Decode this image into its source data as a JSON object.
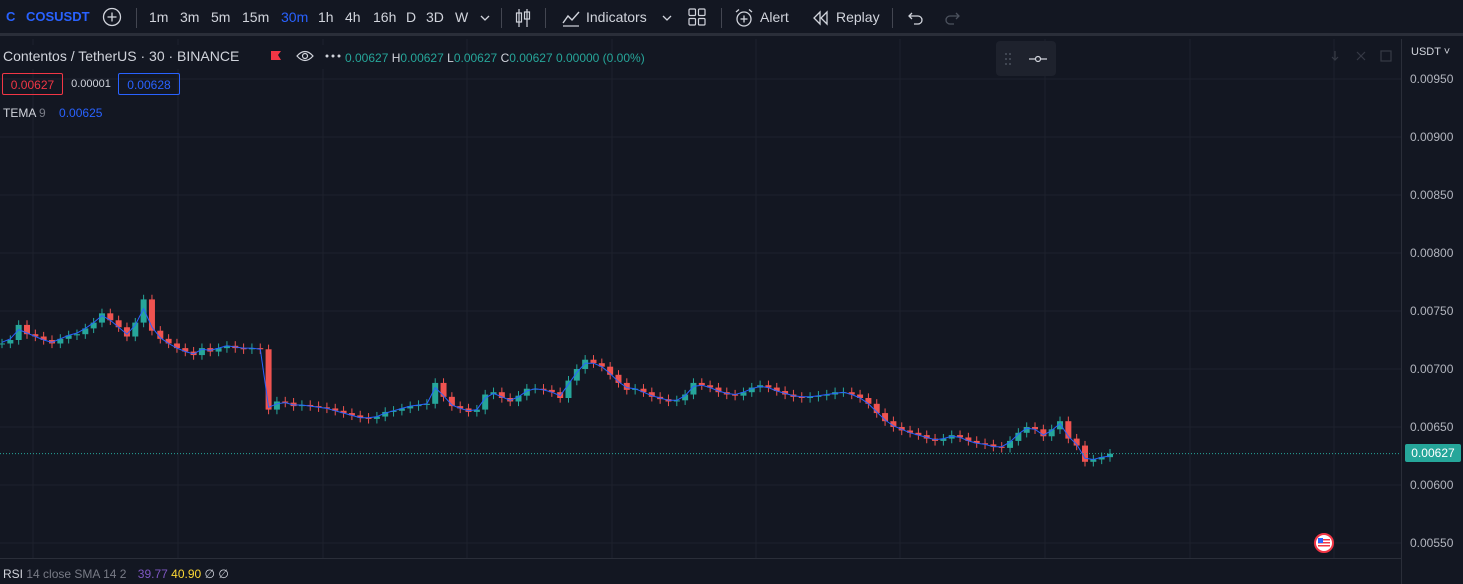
{
  "toolbar": {
    "symbol_logo": "C",
    "symbol": "COSUSDT",
    "timeframes": [
      "1m",
      "3m",
      "5m",
      "15m",
      "30m",
      "1h",
      "4h",
      "16h",
      "D",
      "3D",
      "W"
    ],
    "active_timeframe": "30m",
    "indicators_label": "Indicators",
    "alert_label": "Alert",
    "replay_label": "Replay"
  },
  "legend": {
    "title": "Contentos / TetherUS · 30 · BINANCE",
    "ohlc": {
      "o_value": "0.00627",
      "h_label": "H",
      "h_value": "0.00627",
      "l_label": "L",
      "l_value": "0.00627",
      "c_label": "C",
      "c_value": "0.00627",
      "change": "0.00000 (0.00%)"
    },
    "sell_price": "0.00627",
    "spread": "0.00001",
    "buy_price": "0.00628",
    "tema_label": "TEMA",
    "tema_period": "9",
    "tema_value": "0.00625"
  },
  "rsi": {
    "label": "RSI",
    "params": "14 close SMA 14 2",
    "value1": "39.77",
    "value2": "40.90",
    "value3": "∅",
    "value4": "∅"
  },
  "price_scale": {
    "currency": "USDT",
    "labels": [
      "0.00950",
      "0.00900",
      "0.00850",
      "0.00800",
      "0.00750",
      "0.00700",
      "0.00650",
      "0.00600",
      "0.00550"
    ],
    "last_price": "0.00627"
  },
  "colors": {
    "up": "#26a69a",
    "down": "#ef5350",
    "accent": "#2962ff",
    "background": "#131722",
    "tema": "#2962ff"
  },
  "chart_data": {
    "type": "candlestick",
    "ylim": [
      0.0052,
      0.0097
    ],
    "close_series": [
      0.00722,
      0.00725,
      0.00738,
      0.0073,
      0.00728,
      0.00725,
      0.00722,
      0.00726,
      0.00729,
      0.0073,
      0.00735,
      0.0074,
      0.00748,
      0.00742,
      0.00736,
      0.00728,
      0.0074,
      0.0076,
      0.00733,
      0.00726,
      0.00722,
      0.00718,
      0.00715,
      0.00712,
      0.00718,
      0.00715,
      0.00718,
      0.0072,
      0.00718,
      0.00717,
      0.00718,
      0.00717,
      0.00665,
      0.00672,
      0.00671,
      0.00668,
      0.00669,
      0.00668,
      0.00667,
      0.00666,
      0.00664,
      0.00662,
      0.0066,
      0.00658,
      0.00657,
      0.00659,
      0.00663,
      0.00664,
      0.00666,
      0.00668,
      0.00669,
      0.0067,
      0.00688,
      0.00676,
      0.00668,
      0.00666,
      0.00663,
      0.00665,
      0.00678,
      0.0068,
      0.00675,
      0.00672,
      0.00677,
      0.00683,
      0.00683,
      0.00682,
      0.0068,
      0.00675,
      0.0069,
      0.007,
      0.00708,
      0.00705,
      0.00702,
      0.00695,
      0.00688,
      0.00682,
      0.00683,
      0.0068,
      0.00676,
      0.00674,
      0.00672,
      0.00673,
      0.00678,
      0.00688,
      0.00686,
      0.00684,
      0.0068,
      0.00678,
      0.00677,
      0.0068,
      0.00684,
      0.00686,
      0.00684,
      0.00681,
      0.00678,
      0.00676,
      0.00675,
      0.00676,
      0.00677,
      0.00678,
      0.0068,
      0.0068,
      0.00678,
      0.00675,
      0.0067,
      0.00662,
      0.00655,
      0.0065,
      0.00647,
      0.00645,
      0.00643,
      0.0064,
      0.00638,
      0.0064,
      0.00643,
      0.00641,
      0.00638,
      0.00636,
      0.00635,
      0.00633,
      0.00632,
      0.00638,
      0.00645,
      0.0065,
      0.00648,
      0.00642,
      0.00648,
      0.00655,
      0.0064,
      0.00634,
      0.0062,
      0.00622,
      0.00624,
      0.00627
    ],
    "tema_series": [
      0.00723,
      0.00726,
      0.00734,
      0.00731,
      0.00728,
      0.00725,
      0.00723,
      0.00726,
      0.00729,
      0.00731,
      0.00735,
      0.0074,
      0.00746,
      0.00742,
      0.00736,
      0.0073,
      0.00738,
      0.00752,
      0.00736,
      0.00727,
      0.00722,
      0.00718,
      0.00715,
      0.00713,
      0.00717,
      0.00716,
      0.00718,
      0.0072,
      0.00719,
      0.00718,
      0.00718,
      0.00717,
      0.00667,
      0.0067,
      0.00671,
      0.00669,
      0.00669,
      0.00668,
      0.00667,
      0.00666,
      0.00664,
      0.00662,
      0.0066,
      0.00658,
      0.00658,
      0.00659,
      0.00662,
      0.00664,
      0.00666,
      0.00668,
      0.00669,
      0.0067,
      0.00684,
      0.00677,
      0.00669,
      0.00666,
      0.00664,
      0.00665,
      0.00675,
      0.00679,
      0.00676,
      0.00673,
      0.00676,
      0.00681,
      0.00683,
      0.00682,
      0.0068,
      0.00677,
      0.00687,
      0.00697,
      0.00705,
      0.00705,
      0.00702,
      0.00696,
      0.00689,
      0.00684,
      0.00683,
      0.0068,
      0.00677,
      0.00675,
      0.00673,
      0.00673,
      0.00677,
      0.00685,
      0.00686,
      0.00684,
      0.00681,
      0.00679,
      0.00678,
      0.0068,
      0.00683,
      0.00685,
      0.00684,
      0.00681,
      0.00679,
      0.00677,
      0.00676,
      0.00676,
      0.00677,
      0.00678,
      0.00679,
      0.0068,
      0.00678,
      0.00675,
      0.0067,
      0.00663,
      0.00656,
      0.00651,
      0.00648,
      0.00645,
      0.00643,
      0.00641,
      0.00639,
      0.0064,
      0.00642,
      0.00641,
      0.00638,
      0.00636,
      0.00635,
      0.00633,
      0.00633,
      0.00637,
      0.00644,
      0.00649,
      0.00648,
      0.00643,
      0.00647,
      0.00653,
      0.00642,
      0.00635,
      0.00623,
      0.00622,
      0.00624,
      0.00625
    ]
  }
}
